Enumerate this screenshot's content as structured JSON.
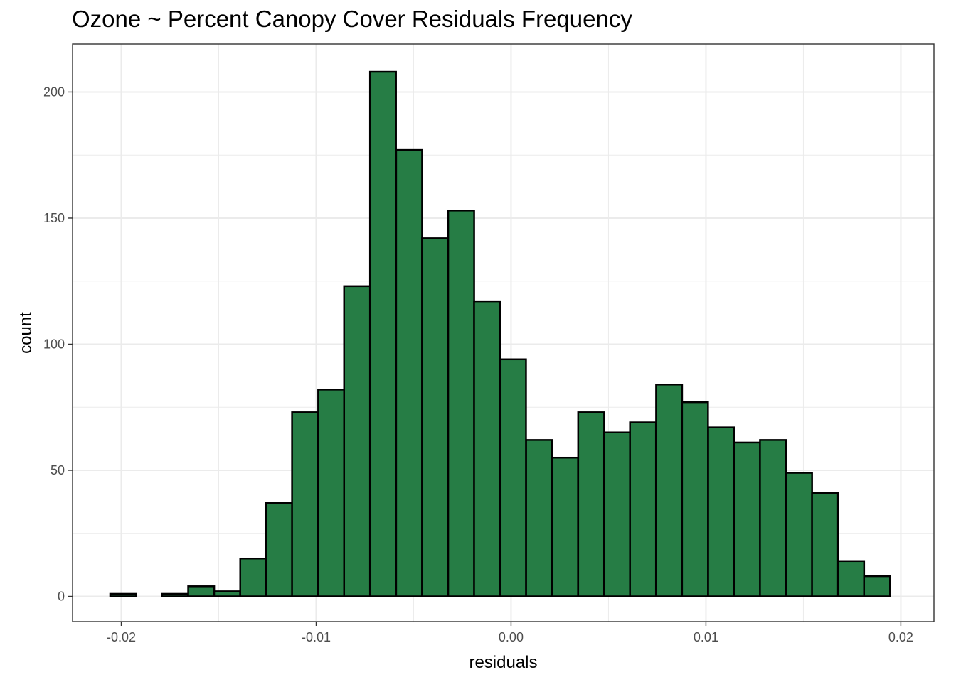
{
  "chart_data": {
    "type": "bar",
    "title": "Ozone ~ Percent Canopy Cover Residuals Frequency",
    "xlabel": "residuals",
    "ylabel": "count",
    "xlim": [
      -0.0225,
      0.0217
    ],
    "ylim": [
      -10,
      219
    ],
    "x_ticks": [
      -0.02,
      -0.01,
      0.0,
      0.01,
      0.02
    ],
    "x_tick_labels": [
      "-0.02",
      "-0.01",
      "0.00",
      "0.01",
      "0.02"
    ],
    "y_ticks": [
      0,
      50,
      100,
      150,
      200
    ],
    "y_tick_labels": [
      "0",
      "50",
      "100",
      "150",
      "200"
    ],
    "bin_width": 0.001333,
    "bin_centers": [
      -0.0199,
      -0.01857,
      -0.01724,
      -0.0159,
      -0.01457,
      -0.01323,
      -0.0119,
      -0.01057,
      -0.00923,
      -0.0079,
      -0.00657,
      -0.00523,
      -0.0039,
      -0.00256,
      -0.00123,
      0.0001,
      0.00144,
      0.00277,
      0.00411,
      0.00544,
      0.00677,
      0.00811,
      0.00944,
      0.01078,
      0.01211,
      0.01344,
      0.01478,
      0.01611,
      0.01745,
      0.01878
    ],
    "values": [
      1,
      0,
      1,
      4,
      2,
      15,
      37,
      73,
      82,
      123,
      208,
      177,
      142,
      153,
      117,
      94,
      62,
      55,
      73,
      65,
      69,
      84,
      77,
      67,
      61,
      62,
      49,
      41,
      14,
      8
    ],
    "bar_fill": "#267d45",
    "bar_stroke": "#000000",
    "panel_background": "#ffffff",
    "grid_major_color": "#ebebeb",
    "grid_minor_color": "#ebebeb",
    "grid": true,
    "legend": "none"
  }
}
